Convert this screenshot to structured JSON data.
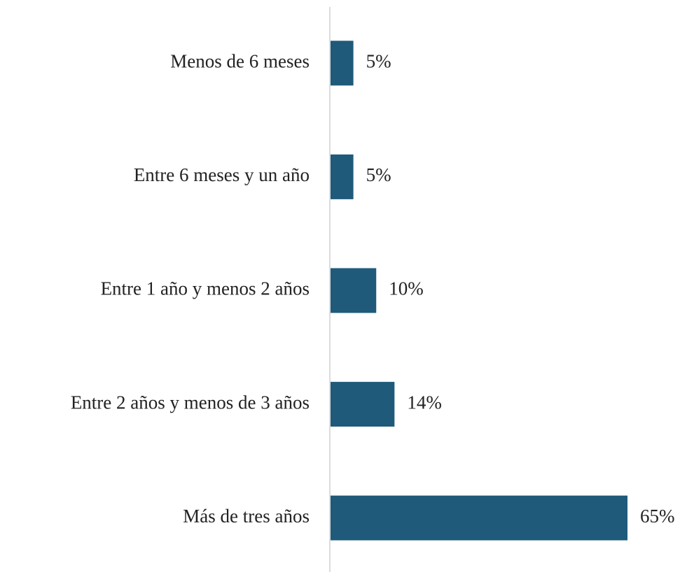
{
  "chart_data": {
    "type": "bar",
    "orientation": "horizontal",
    "categories": [
      "Menos de 6 meses",
      "Entre 6 meses y un año",
      "Entre 1 año y menos 2 años",
      "Entre 2 años y menos de 3 años",
      "Más de tres años"
    ],
    "values": [
      5,
      5,
      10,
      14,
      65
    ],
    "value_labels": [
      "5%",
      "5%",
      "10%",
      "14%",
      "65%"
    ],
    "color": "#1f5a7a"
  }
}
